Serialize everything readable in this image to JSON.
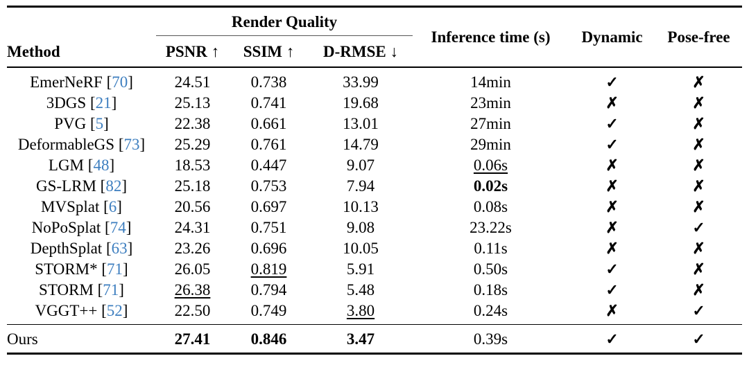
{
  "page": {
    "background_color": "#ffffff",
    "text_color": "#000000",
    "citation_color": "#3d7ebf",
    "rule_color": "#000000"
  },
  "header": {
    "method": "Method",
    "render_quality": "Render Quality",
    "psnr": "PSNR ↑",
    "ssim": "SSIM ↑",
    "d_rmse": "D-RMSE ↓",
    "inference_time": "Inference time (s)",
    "dynamic": "Dynamic",
    "pose_free": "Pose-free"
  },
  "symbols": {
    "check": "✓",
    "cross": "✗"
  },
  "rows": [
    {
      "method": "EmerNeRF",
      "citation": "70",
      "psnr": "24.51",
      "ssim": "0.738",
      "d_rmse": "33.99",
      "time": "14min",
      "dynamic": "check",
      "pose_free": "cross",
      "emphasis": {}
    },
    {
      "method": "3DGS",
      "citation": "21",
      "psnr": "25.13",
      "ssim": "0.741",
      "d_rmse": "19.68",
      "time": "23min",
      "dynamic": "cross",
      "pose_free": "cross",
      "emphasis": {}
    },
    {
      "method": "PVG",
      "citation": "5",
      "psnr": "22.38",
      "ssim": "0.661",
      "d_rmse": "13.01",
      "time": "27min",
      "dynamic": "check",
      "pose_free": "cross",
      "emphasis": {}
    },
    {
      "method": "DeformableGS",
      "citation": "73",
      "psnr": "25.29",
      "ssim": "0.761",
      "d_rmse": "14.79",
      "time": "29min",
      "dynamic": "check",
      "pose_free": "cross",
      "emphasis": {}
    },
    {
      "method": "LGM",
      "citation": "48",
      "psnr": "18.53",
      "ssim": "0.447",
      "d_rmse": "9.07",
      "time": "0.06s",
      "dynamic": "cross",
      "pose_free": "cross",
      "emphasis": {
        "time": "u"
      }
    },
    {
      "method": "GS-LRM",
      "citation": "82",
      "psnr": "25.18",
      "ssim": "0.753",
      "d_rmse": "7.94",
      "time": "0.02s",
      "dynamic": "cross",
      "pose_free": "cross",
      "emphasis": {
        "time": "b"
      }
    },
    {
      "method": "MVSplat",
      "citation": "6",
      "psnr": "20.56",
      "ssim": "0.697",
      "d_rmse": "10.13",
      "time": "0.08s",
      "dynamic": "cross",
      "pose_free": "cross",
      "emphasis": {}
    },
    {
      "method": "NoPoSplat",
      "citation": "74",
      "psnr": "24.31",
      "ssim": "0.751",
      "d_rmse": "9.08",
      "time": "23.22s",
      "dynamic": "cross",
      "pose_free": "check",
      "emphasis": {}
    },
    {
      "method": "DepthSplat",
      "citation": "63",
      "psnr": "23.26",
      "ssim": "0.696",
      "d_rmse": "10.05",
      "time": "0.11s",
      "dynamic": "cross",
      "pose_free": "cross",
      "emphasis": {}
    },
    {
      "method": "STORM*",
      "citation": "71",
      "psnr": "26.05",
      "ssim": "0.819",
      "d_rmse": "5.91",
      "time": "0.50s",
      "dynamic": "check",
      "pose_free": "cross",
      "emphasis": {
        "ssim": "u"
      }
    },
    {
      "method": "STORM",
      "citation": "71",
      "psnr": "26.38",
      "ssim": "0.794",
      "d_rmse": "5.48",
      "time": "0.18s",
      "dynamic": "check",
      "pose_free": "cross",
      "emphasis": {
        "psnr": "u"
      }
    },
    {
      "method": "VGGT++",
      "citation": "52",
      "psnr": "22.50",
      "ssim": "0.749",
      "d_rmse": "3.80",
      "time": "0.24s",
      "dynamic": "cross",
      "pose_free": "check",
      "emphasis": {
        "d_rmse": "u"
      }
    }
  ],
  "ours_row": {
    "method": "Ours",
    "citation": null,
    "psnr": "27.41",
    "ssim": "0.846",
    "d_rmse": "3.47",
    "time": "0.39s",
    "dynamic": "check",
    "pose_free": "check",
    "emphasis": {
      "psnr": "b",
      "ssim": "b",
      "d_rmse": "b"
    }
  }
}
